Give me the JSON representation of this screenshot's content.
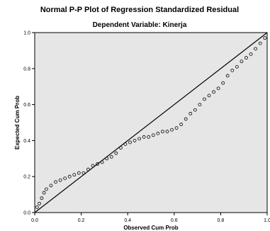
{
  "chart_data": {
    "type": "scatter",
    "title": "Normal P-P Plot of Regression Standardized Residual",
    "subtitle": "Dependent Variable: Kinerja",
    "xlabel": "Observed Cum Prob",
    "ylabel": "Expected Cum Prob",
    "xlim": [
      0,
      1
    ],
    "ylim": [
      0,
      1
    ],
    "x_ticks": [
      "0.0",
      "0.2",
      "0.4",
      "0.6",
      "0.8",
      "1.0"
    ],
    "y_ticks": [
      "0.0",
      "0.2",
      "0.4",
      "0.6",
      "0.8",
      "1.0"
    ],
    "grid": false,
    "reference_line": {
      "from": [
        0,
        0
      ],
      "to": [
        1,
        1
      ]
    },
    "colors": {
      "plot_bg": "#e6e6e6",
      "points": "#000000",
      "line": "#000000"
    },
    "series": [
      {
        "points": [
          [
            0.01,
            0.03
          ],
          [
            0.02,
            0.05
          ],
          [
            0.03,
            0.08
          ],
          [
            0.04,
            0.11
          ],
          [
            0.05,
            0.13
          ],
          [
            0.07,
            0.15
          ],
          [
            0.09,
            0.17
          ],
          [
            0.11,
            0.18
          ],
          [
            0.13,
            0.19
          ],
          [
            0.15,
            0.2
          ],
          [
            0.17,
            0.21
          ],
          [
            0.19,
            0.22
          ],
          [
            0.21,
            0.22
          ],
          [
            0.23,
            0.24
          ],
          [
            0.25,
            0.26
          ],
          [
            0.27,
            0.27
          ],
          [
            0.29,
            0.28
          ],
          [
            0.31,
            0.3
          ],
          [
            0.33,
            0.31
          ],
          [
            0.35,
            0.33
          ],
          [
            0.37,
            0.36
          ],
          [
            0.39,
            0.38
          ],
          [
            0.41,
            0.39
          ],
          [
            0.43,
            0.4
          ],
          [
            0.45,
            0.41
          ],
          [
            0.47,
            0.42
          ],
          [
            0.49,
            0.42
          ],
          [
            0.51,
            0.43
          ],
          [
            0.53,
            0.44
          ],
          [
            0.55,
            0.45
          ],
          [
            0.57,
            0.45
          ],
          [
            0.59,
            0.46
          ],
          [
            0.61,
            0.47
          ],
          [
            0.63,
            0.49
          ],
          [
            0.65,
            0.52
          ],
          [
            0.67,
            0.55
          ],
          [
            0.69,
            0.57
          ],
          [
            0.71,
            0.6
          ],
          [
            0.73,
            0.63
          ],
          [
            0.75,
            0.65
          ],
          [
            0.77,
            0.67
          ],
          [
            0.79,
            0.69
          ],
          [
            0.81,
            0.72
          ],
          [
            0.83,
            0.76
          ],
          [
            0.85,
            0.79
          ],
          [
            0.87,
            0.81
          ],
          [
            0.89,
            0.84
          ],
          [
            0.91,
            0.86
          ],
          [
            0.93,
            0.88
          ],
          [
            0.95,
            0.91
          ],
          [
            0.97,
            0.94
          ],
          [
            0.99,
            0.97
          ]
        ]
      }
    ]
  }
}
